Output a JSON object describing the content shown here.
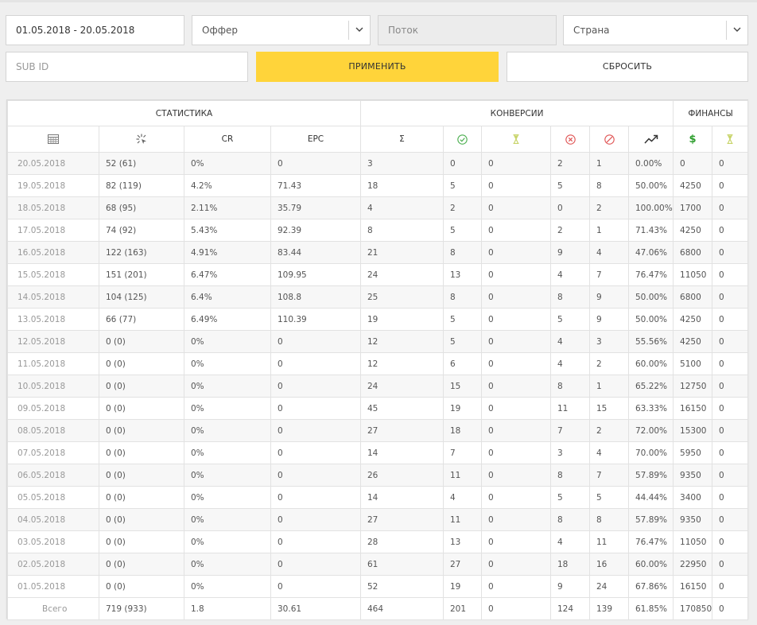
{
  "filters": {
    "date_range": "01.05.2018 - 20.05.2018",
    "offer": "Оффер",
    "stream": "Поток",
    "country": "Страна",
    "subid_placeholder": "SUB ID",
    "apply_label": "ПРИМЕНИТЬ",
    "reset_label": "СБРОСИТЬ"
  },
  "table": {
    "groups": {
      "stats": "СТАТИСТИКА",
      "conversions": "КОНВЕРСИИ",
      "finance": "ФИНАНСЫ"
    },
    "headers": {
      "cr": "CR",
      "epc": "EPC",
      "sum": "Σ"
    },
    "icons": [
      "calendar-icon",
      "click-icon",
      "approved-icon",
      "hold-hourglass-icon",
      "rejected-icon",
      "cancelled-icon",
      "trend-icon",
      "dollar-icon",
      "finance-hold-icon"
    ],
    "colors": {
      "accent": "#ffd43a",
      "approved": "#4caf50",
      "hold": "#c8d46a",
      "rejected": "#e05555",
      "dollar": "#2e9e2e"
    },
    "rows": [
      [
        "20.05.2018",
        "52 (61)",
        "0%",
        "0",
        "3",
        "0",
        "0",
        "2",
        "1",
        "0.00%",
        "0",
        "0"
      ],
      [
        "19.05.2018",
        "82 (119)",
        "4.2%",
        "71.43",
        "18",
        "5",
        "0",
        "5",
        "8",
        "50.00%",
        "4250",
        "0"
      ],
      [
        "18.05.2018",
        "68 (95)",
        "2.11%",
        "35.79",
        "4",
        "2",
        "0",
        "0",
        "2",
        "100.00%",
        "1700",
        "0"
      ],
      [
        "17.05.2018",
        "74 (92)",
        "5.43%",
        "92.39",
        "8",
        "5",
        "0",
        "2",
        "1",
        "71.43%",
        "4250",
        "0"
      ],
      [
        "16.05.2018",
        "122 (163)",
        "4.91%",
        "83.44",
        "21",
        "8",
        "0",
        "9",
        "4",
        "47.06%",
        "6800",
        "0"
      ],
      [
        "15.05.2018",
        "151 (201)",
        "6.47%",
        "109.95",
        "24",
        "13",
        "0",
        "4",
        "7",
        "76.47%",
        "11050",
        "0"
      ],
      [
        "14.05.2018",
        "104 (125)",
        "6.4%",
        "108.8",
        "25",
        "8",
        "0",
        "8",
        "9",
        "50.00%",
        "6800",
        "0"
      ],
      [
        "13.05.2018",
        "66 (77)",
        "6.49%",
        "110.39",
        "19",
        "5",
        "0",
        "5",
        "9",
        "50.00%",
        "4250",
        "0"
      ],
      [
        "12.05.2018",
        "0 (0)",
        "0%",
        "0",
        "12",
        "5",
        "0",
        "4",
        "3",
        "55.56%",
        "4250",
        "0"
      ],
      [
        "11.05.2018",
        "0 (0)",
        "0%",
        "0",
        "12",
        "6",
        "0",
        "4",
        "2",
        "60.00%",
        "5100",
        "0"
      ],
      [
        "10.05.2018",
        "0 (0)",
        "0%",
        "0",
        "24",
        "15",
        "0",
        "8",
        "1",
        "65.22%",
        "12750",
        "0"
      ],
      [
        "09.05.2018",
        "0 (0)",
        "0%",
        "0",
        "45",
        "19",
        "0",
        "11",
        "15",
        "63.33%",
        "16150",
        "0"
      ],
      [
        "08.05.2018",
        "0 (0)",
        "0%",
        "0",
        "27",
        "18",
        "0",
        "7",
        "2",
        "72.00%",
        "15300",
        "0"
      ],
      [
        "07.05.2018",
        "0 (0)",
        "0%",
        "0",
        "14",
        "7",
        "0",
        "3",
        "4",
        "70.00%",
        "5950",
        "0"
      ],
      [
        "06.05.2018",
        "0 (0)",
        "0%",
        "0",
        "26",
        "11",
        "0",
        "8",
        "7",
        "57.89%",
        "9350",
        "0"
      ],
      [
        "05.05.2018",
        "0 (0)",
        "0%",
        "0",
        "14",
        "4",
        "0",
        "5",
        "5",
        "44.44%",
        "3400",
        "0"
      ],
      [
        "04.05.2018",
        "0 (0)",
        "0%",
        "0",
        "27",
        "11",
        "0",
        "8",
        "8",
        "57.89%",
        "9350",
        "0"
      ],
      [
        "03.05.2018",
        "0 (0)",
        "0%",
        "0",
        "28",
        "13",
        "0",
        "4",
        "11",
        "76.47%",
        "11050",
        "0"
      ],
      [
        "02.05.2018",
        "0 (0)",
        "0%",
        "0",
        "61",
        "27",
        "0",
        "18",
        "16",
        "60.00%",
        "22950",
        "0"
      ],
      [
        "01.05.2018",
        "0 (0)",
        "0%",
        "0",
        "52",
        "19",
        "0",
        "9",
        "24",
        "67.86%",
        "16150",
        "0"
      ]
    ],
    "total": [
      "Всего",
      "719 (933)",
      "1.8",
      "30.61",
      "464",
      "201",
      "0",
      "124",
      "139",
      "61.85%",
      "170850",
      "0"
    ]
  }
}
